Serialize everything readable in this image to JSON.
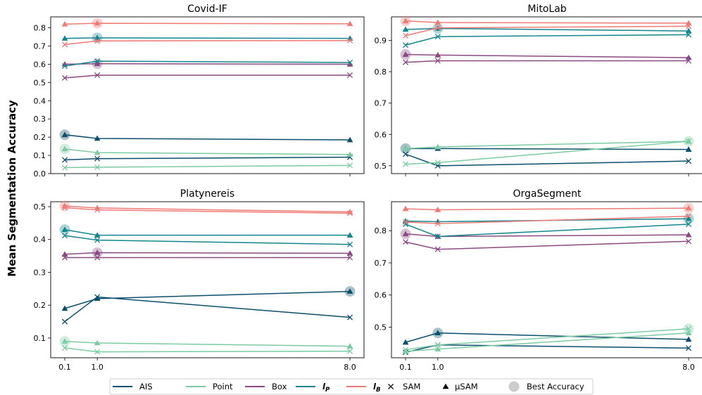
{
  "figure": {
    "ylabel": "Mean Segmentation Accuracy",
    "xticks": [
      "0.1",
      "1.0",
      "8.0"
    ]
  },
  "series_colors": {
    "AIS": "#0b4f6c",
    "Point": "#7ccba2",
    "Box": "#8b4a82",
    "lP": "#12868e",
    "lB": "#ef7a76",
    "best": "#cccccc"
  },
  "legend": {
    "items": [
      {
        "key": "AIS",
        "label": "AIS",
        "style": "line"
      },
      {
        "key": "Point",
        "label": "Point",
        "style": "line"
      },
      {
        "key": "Box",
        "label": "Box",
        "style": "line"
      },
      {
        "key": "lP",
        "label": "l",
        "sub": "P",
        "style": "line"
      },
      {
        "key": "lB",
        "label": "l",
        "sub": "B",
        "style": "line"
      },
      {
        "key": "SAM",
        "label": "SAM",
        "style": "x"
      },
      {
        "key": "muSAM",
        "label": "μSAM",
        "style": "triangle"
      },
      {
        "key": "best",
        "label": "Best Accuracy",
        "style": "circle"
      }
    ]
  },
  "chart_data": [
    {
      "type": "line",
      "title": "Covid-IF",
      "x": [
        0.1,
        1.0,
        8.0
      ],
      "ylim": [
        0,
        0.86
      ],
      "yticks": [
        "0.0",
        "0.1",
        "0.2",
        "0.3",
        "0.4",
        "0.5",
        "0.6",
        "0.7",
        "0.8"
      ],
      "series": [
        {
          "name": "AIS",
          "model": "SAM",
          "values": [
            0.075,
            0.082,
            0.09
          ]
        },
        {
          "name": "AIS",
          "model": "μSAM",
          "values": [
            0.213,
            0.193,
            0.185
          ]
        },
        {
          "name": "Point",
          "model": "SAM",
          "values": [
            0.033,
            0.035,
            0.045
          ]
        },
        {
          "name": "Point",
          "model": "μSAM",
          "values": [
            0.135,
            0.115,
            0.105
          ]
        },
        {
          "name": "Box",
          "model": "SAM",
          "values": [
            0.525,
            0.54,
            0.54
          ]
        },
        {
          "name": "Box",
          "model": "μSAM",
          "values": [
            0.6,
            0.603,
            0.6
          ]
        },
        {
          "name": "lP",
          "model": "SAM",
          "values": [
            0.59,
            0.617,
            0.61
          ]
        },
        {
          "name": "lP",
          "model": "μSAM",
          "values": [
            0.742,
            0.745,
            0.742
          ]
        },
        {
          "name": "lB",
          "model": "SAM",
          "values": [
            0.708,
            0.728,
            0.73
          ]
        },
        {
          "name": "lB",
          "model": "μSAM",
          "values": [
            0.82,
            0.825,
            0.822
          ]
        }
      ],
      "best": [
        {
          "series": "AIS",
          "x": 0.1,
          "y": 0.213
        },
        {
          "series": "Point",
          "x": 0.1,
          "y": 0.135
        },
        {
          "series": "Box",
          "x": 1.0,
          "y": 0.603
        },
        {
          "series": "lP",
          "x": 1.0,
          "y": 0.745
        },
        {
          "series": "lB",
          "x": 1.0,
          "y": 0.825
        }
      ]
    },
    {
      "type": "line",
      "title": "MitoLab",
      "x": [
        0.1,
        1.0,
        8.0
      ],
      "ylim": [
        0.475,
        0.975
      ],
      "yticks": [
        "0.5",
        "0.6",
        "0.7",
        "0.8",
        "0.9"
      ],
      "series": [
        {
          "name": "AIS",
          "model": "SAM",
          "values": [
            0.537,
            0.5,
            0.515
          ]
        },
        {
          "name": "AIS",
          "model": "μSAM",
          "values": [
            0.555,
            0.555,
            0.552
          ]
        },
        {
          "name": "Point",
          "model": "SAM",
          "values": [
            0.505,
            0.51,
            0.578
          ]
        },
        {
          "name": "Point",
          "model": "μSAM",
          "values": [
            0.555,
            0.56,
            0.578
          ]
        },
        {
          "name": "Box",
          "model": "SAM",
          "values": [
            0.83,
            0.835,
            0.835
          ]
        },
        {
          "name": "Box",
          "model": "μSAM",
          "values": [
            0.855,
            0.853,
            0.845
          ]
        },
        {
          "name": "lP",
          "model": "SAM",
          "values": [
            0.885,
            0.912,
            0.918
          ]
        },
        {
          "name": "lP",
          "model": "μSAM",
          "values": [
            0.935,
            0.938,
            0.93
          ]
        },
        {
          "name": "lB",
          "model": "SAM",
          "values": [
            0.915,
            0.94,
            0.945
          ]
        },
        {
          "name": "lB",
          "model": "μSAM",
          "values": [
            0.962,
            0.957,
            0.955
          ]
        }
      ],
      "best": [
        {
          "series": "AIS",
          "x": 0.1,
          "y": 0.555
        },
        {
          "series": "Point",
          "x": 8.0,
          "y": 0.578
        },
        {
          "series": "Box",
          "x": 0.1,
          "y": 0.855
        },
        {
          "series": "lP",
          "x": 1.0,
          "y": 0.938
        },
        {
          "series": "lB",
          "x": 0.1,
          "y": 0.962
        }
      ]
    },
    {
      "type": "line",
      "title": "Platynereis",
      "x": [
        0.1,
        1.0,
        8.0
      ],
      "ylim": [
        0.04,
        0.515
      ],
      "yticks": [
        "0.1",
        "0.2",
        "0.3",
        "0.4",
        "0.5"
      ],
      "series": [
        {
          "name": "AIS",
          "model": "SAM",
          "values": [
            0.15,
            0.225,
            0.163
          ]
        },
        {
          "name": "AIS",
          "model": "μSAM",
          "values": [
            0.19,
            0.22,
            0.242
          ]
        },
        {
          "name": "Point",
          "model": "SAM",
          "values": [
            0.07,
            0.058,
            0.06
          ]
        },
        {
          "name": "Point",
          "model": "μSAM",
          "values": [
            0.09,
            0.085,
            0.075
          ]
        },
        {
          "name": "Box",
          "model": "SAM",
          "values": [
            0.345,
            0.345,
            0.345
          ]
        },
        {
          "name": "Box",
          "model": "μSAM",
          "values": [
            0.355,
            0.36,
            0.358
          ]
        },
        {
          "name": "lP",
          "model": "SAM",
          "values": [
            0.412,
            0.398,
            0.385
          ]
        },
        {
          "name": "lP",
          "model": "μSAM",
          "values": [
            0.43,
            0.413,
            0.413
          ]
        },
        {
          "name": "lB",
          "model": "SAM",
          "values": [
            0.497,
            0.49,
            0.48
          ]
        },
        {
          "name": "lB",
          "model": "μSAM",
          "values": [
            0.502,
            0.496,
            0.484
          ]
        }
      ],
      "best": [
        {
          "series": "AIS",
          "x": 8.0,
          "y": 0.242
        },
        {
          "series": "Point",
          "x": 0.1,
          "y": 0.09
        },
        {
          "series": "Box",
          "x": 1.0,
          "y": 0.36
        },
        {
          "series": "lP",
          "x": 0.1,
          "y": 0.43
        },
        {
          "series": "lB",
          "x": 0.1,
          "y": 0.502
        }
      ]
    },
    {
      "type": "line",
      "title": "OrgaSegment",
      "x": [
        0.1,
        1.0,
        8.0
      ],
      "ylim": [
        0.405,
        0.89
      ],
      "yticks": [
        "0.5",
        "0.6",
        "0.7",
        "0.8"
      ],
      "series": [
        {
          "name": "AIS",
          "model": "SAM",
          "values": [
            0.422,
            0.445,
            0.435
          ]
        },
        {
          "name": "AIS",
          "model": "μSAM",
          "values": [
            0.453,
            0.482,
            0.462
          ]
        },
        {
          "name": "Point",
          "model": "SAM",
          "values": [
            0.43,
            0.445,
            0.495
          ]
        },
        {
          "name": "Point",
          "model": "μSAM",
          "values": [
            0.425,
            0.432,
            0.482
          ]
        },
        {
          "name": "Box",
          "model": "SAM",
          "values": [
            0.765,
            0.742,
            0.767
          ]
        },
        {
          "name": "Box",
          "model": "μSAM",
          "values": [
            0.79,
            0.782,
            0.787
          ]
        },
        {
          "name": "lP",
          "model": "SAM",
          "values": [
            0.82,
            0.782,
            0.82
          ]
        },
        {
          "name": "lP",
          "model": "μSAM",
          "values": [
            0.83,
            0.828,
            0.837
          ]
        },
        {
          "name": "lB",
          "model": "SAM",
          "values": [
            0.827,
            0.822,
            0.845
          ]
        },
        {
          "name": "lB",
          "model": "μSAM",
          "values": [
            0.868,
            0.865,
            0.87
          ]
        }
      ],
      "best": [
        {
          "series": "AIS",
          "x": 1.0,
          "y": 0.482
        },
        {
          "series": "Point",
          "x": 8.0,
          "y": 0.495
        },
        {
          "series": "Box",
          "x": 0.1,
          "y": 0.79
        },
        {
          "series": "lP",
          "x": 8.0,
          "y": 0.837
        },
        {
          "series": "lB",
          "x": 8.0,
          "y": 0.87
        }
      ]
    }
  ]
}
